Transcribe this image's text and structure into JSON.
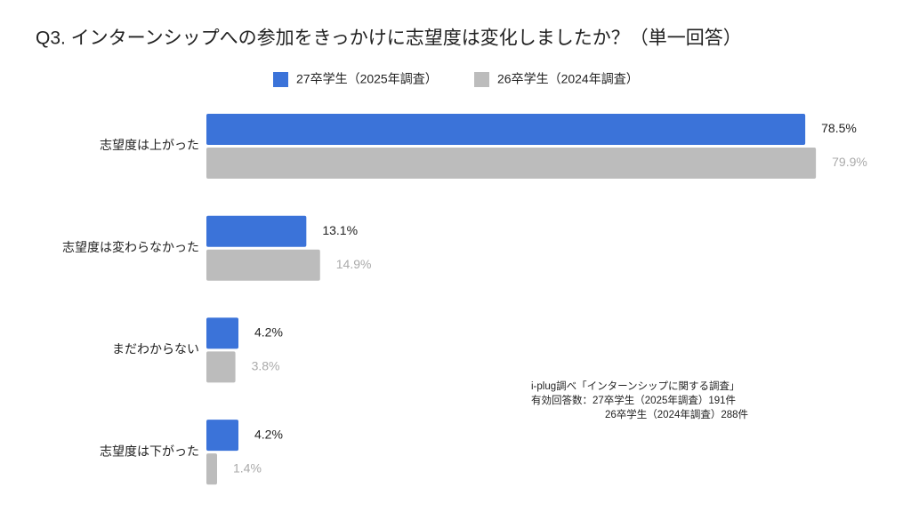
{
  "chart_data": {
    "type": "bar",
    "orientation": "horizontal",
    "title": "Q3. インターンシップへの参加をきっかけに志望度は変化しましたか？（単一回答）",
    "categories": [
      "志望度は上がった",
      "志望度は変わらなかった",
      "まだわからない",
      "志望度は下がった"
    ],
    "series": [
      {
        "name": "27卒学生（2025年調査）",
        "color": "#3b73d9",
        "values": [
          78.5,
          13.1,
          4.2,
          4.2
        ],
        "value_labels": [
          "78.5%",
          "13.1%",
          "4.2%",
          "4.2%"
        ]
      },
      {
        "name": "26卒学生（2024年調査）",
        "color": "#bcbcbc",
        "values": [
          79.9,
          14.9,
          3.8,
          1.4
        ],
        "value_labels": [
          "79.9%",
          "14.9%",
          "3.8%",
          "1.4%"
        ]
      }
    ],
    "legend": "top",
    "annotations": [
      "i-plug調べ「インターンシップに関する調査」",
      "有効回答数：27卒学生（2025年調査）191件",
      "26卒学生（2024年調査）288件"
    ]
  }
}
